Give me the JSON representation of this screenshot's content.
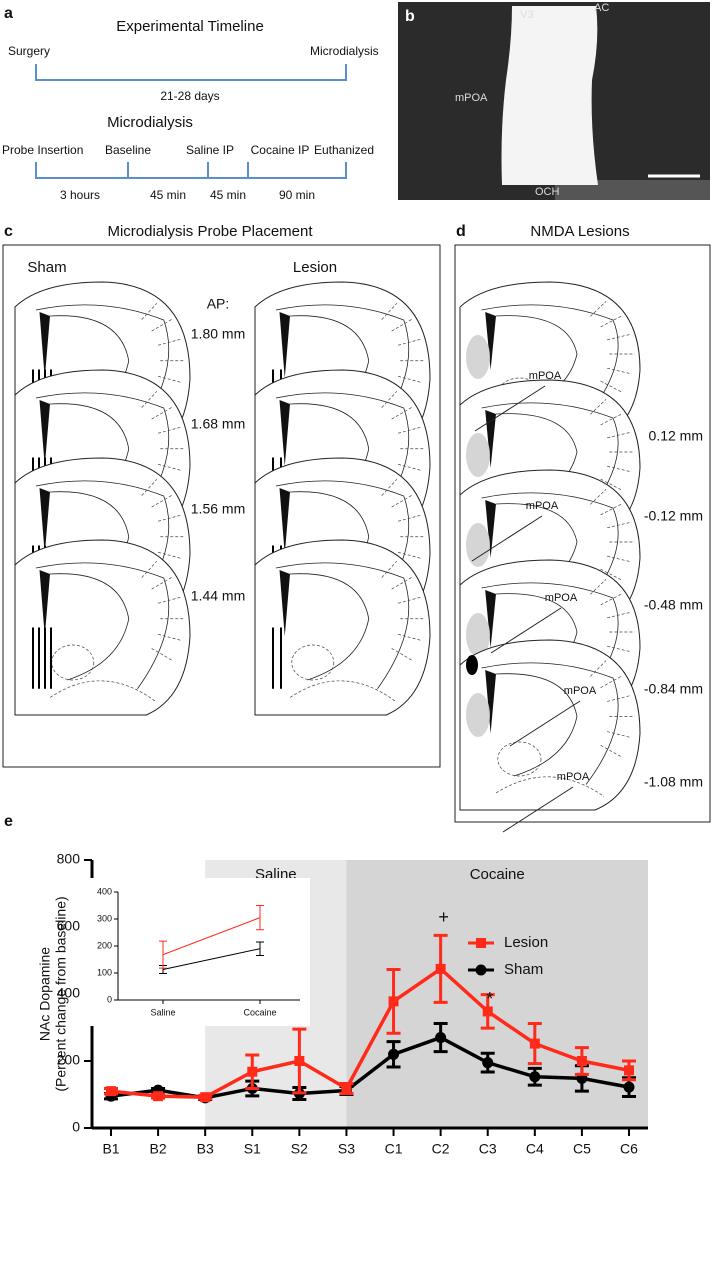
{
  "panel_a": {
    "letter": "a",
    "title": "Experimental  Timeline",
    "start": "Surgery",
    "end": "Microdialysis",
    "span": "21-28 days",
    "subtitle": "Microdialysis",
    "events": [
      "Probe Insertion",
      "Baseline",
      "Saline IP",
      "Cocaine IP",
      "Euthanized"
    ],
    "durations": [
      "3 hours",
      "45 min",
      "45 min",
      "90 min"
    ]
  },
  "panel_b": {
    "letter": "b",
    "labels": [
      "V3",
      "AC",
      "mPOA",
      "OCH"
    ]
  },
  "panel_c": {
    "letter": "c",
    "title": "Microdialysis Probe Placement",
    "groups": [
      "Sham",
      "Lesion"
    ],
    "ap_label": "AP:",
    "levels": [
      "1.80 mm",
      "1.68 mm",
      "1.56 mm",
      "1.44 mm"
    ]
  },
  "panel_d": {
    "letter": "d",
    "title": "NMDA Lesions",
    "levels": [
      "0.12 mm",
      "-0.12 mm",
      "-0.48 mm",
      "-0.84 mm",
      "-1.08 mm"
    ],
    "region_labels": [
      "mPOA",
      "mPOA",
      "mPOA",
      "mPOA",
      "mPOA"
    ]
  },
  "panel_e": {
    "letter": "e"
  },
  "chart_data": [
    {
      "type": "line",
      "ylabel": [
        "NAc Dopamine",
        "(Percent change from baseline)"
      ],
      "categories": [
        "B1",
        "B2",
        "B3",
        "S1",
        "S2",
        "S3",
        "C1",
        "C2",
        "C3",
        "C4",
        "C5",
        "C6"
      ],
      "ylim": [
        0,
        800
      ],
      "yticks": [
        0,
        200,
        400,
        600,
        800
      ],
      "region_labels": [
        "Saline",
        "Cocaine"
      ],
      "annotations": [
        "+",
        "*"
      ],
      "legend": "center right",
      "series": [
        {
          "name": "Lesion",
          "color": "#ff2a1a",
          "marker": "square",
          "values": [
            110,
            95,
            92,
            168,
            200,
            118,
            378,
            475,
            348,
            252,
            200,
            172
          ],
          "errors": [
            8,
            6,
            5,
            50,
            95,
            15,
            95,
            100,
            50,
            60,
            40,
            28
          ]
        },
        {
          "name": "Sham",
          "color": "#000000",
          "marker": "circle",
          "values": [
            95,
            113,
            90,
            118,
            103,
            112,
            220,
            270,
            195,
            153,
            148,
            122
          ],
          "errors": [
            8,
            5,
            5,
            22,
            18,
            12,
            38,
            42,
            28,
            25,
            38,
            28
          ]
        }
      ]
    },
    {
      "type": "line",
      "categories": [
        "Saline",
        "Cocaine"
      ],
      "ylim": [
        0,
        400
      ],
      "yticks": [
        0,
        100,
        200,
        300,
        400
      ],
      "series": [
        {
          "name": "Lesion",
          "color": "#ff2a1a",
          "values": [
            168,
            305
          ],
          "errors": [
            50,
            45
          ]
        },
        {
          "name": "Sham",
          "color": "#000000",
          "values": [
            113,
            190
          ],
          "errors": [
            15,
            25
          ]
        }
      ]
    }
  ]
}
